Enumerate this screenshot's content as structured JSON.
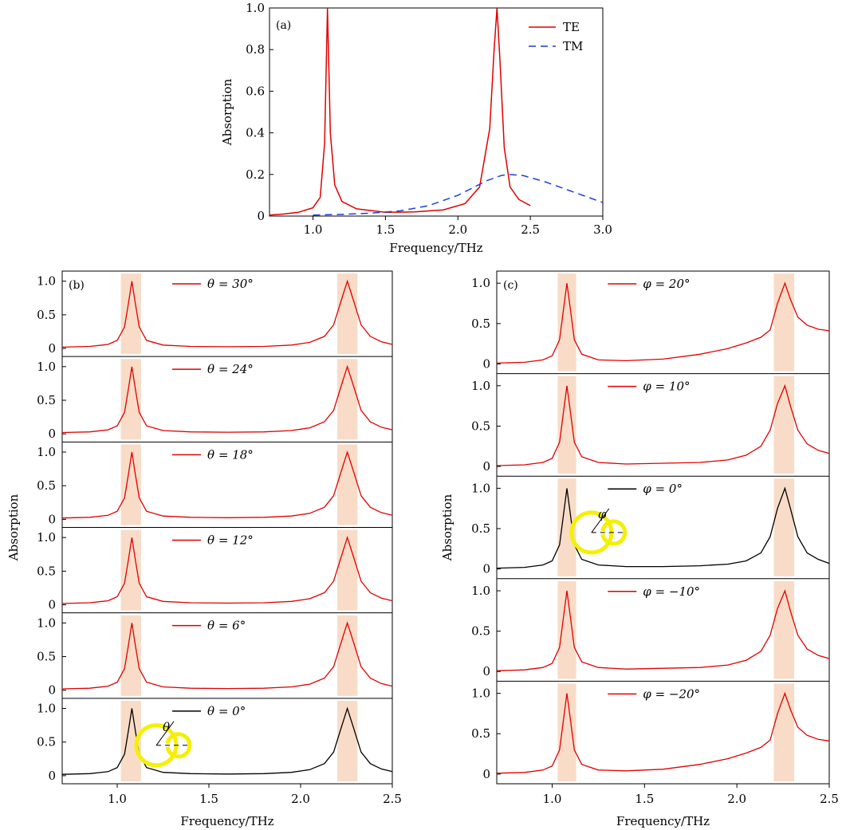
{
  "chart_data": [
    {
      "type": "line",
      "panel_label": "(a)",
      "xlabel": "Frequency/THz",
      "ylabel": "Absorption",
      "xlim": [
        0.7,
        3.0
      ],
      "ylim": [
        0,
        1.0
      ],
      "xticks": [
        1.0,
        1.5,
        2.0,
        2.5,
        3.0
      ],
      "xtick_labels": [
        "1.0",
        "1.5",
        "2.0",
        "2.5",
        "3.0"
      ],
      "yticks": [
        0,
        0.2,
        0.4,
        0.6,
        0.8,
        1.0
      ],
      "ytick_labels": [
        "0",
        "0.2",
        "0.4",
        "0.6",
        "0.8",
        "1.0"
      ],
      "legend_position": "top-right",
      "series": [
        {
          "name": "TE",
          "color": "#e00000",
          "style": "solid",
          "x": [
            0.7,
            0.8,
            0.9,
            1.0,
            1.05,
            1.08,
            1.1,
            1.12,
            1.15,
            1.2,
            1.3,
            1.5,
            1.7,
            1.9,
            2.05,
            2.15,
            2.22,
            2.25,
            2.27,
            2.29,
            2.32,
            2.36,
            2.42,
            2.5
          ],
          "y": [
            0.005,
            0.01,
            0.018,
            0.04,
            0.09,
            0.35,
            1.0,
            0.4,
            0.15,
            0.07,
            0.035,
            0.018,
            0.02,
            0.03,
            0.06,
            0.14,
            0.42,
            0.8,
            1.0,
            0.75,
            0.33,
            0.14,
            0.08,
            0.05
          ]
        },
        {
          "name": "TM",
          "color": "#1f3fd8",
          "style": "dashed",
          "x": [
            1.0,
            1.2,
            1.4,
            1.6,
            1.8,
            2.0,
            2.1,
            2.2,
            2.3,
            2.35,
            2.45,
            2.6,
            2.8,
            3.0
          ],
          "y": [
            0.005,
            0.008,
            0.014,
            0.025,
            0.05,
            0.1,
            0.135,
            0.17,
            0.195,
            0.2,
            0.195,
            0.165,
            0.115,
            0.065
          ]
        }
      ]
    },
    {
      "type": "line",
      "panel_label": "(b)",
      "xlabel": "Frequency/THz",
      "ylabel": "Absorption",
      "xlim": [
        0.7,
        2.5
      ],
      "ylim": [
        0,
        1.0
      ],
      "xticks": [
        1.0,
        1.5,
        2.0,
        2.5
      ],
      "xtick_labels": [
        "1.0",
        "1.5",
        "2.0",
        "2.5"
      ],
      "yticks": [
        0,
        0.5,
        1.0
      ],
      "ytick_labels": [
        "0",
        "0.5",
        "1.0"
      ],
      "highlight_bands": [
        [
          1.02,
          1.13
        ],
        [
          2.2,
          2.31
        ]
      ],
      "highlight_color": "#f8dcc8",
      "peaks": [
        1.08,
        2.255
      ],
      "legend_position": "top-center",
      "subplots": [
        {
          "legend": "θ = 30°",
          "color": "#e00000"
        },
        {
          "legend": "θ = 24°",
          "color": "#e00000"
        },
        {
          "legend": "θ = 18°",
          "color": "#e00000"
        },
        {
          "legend": "θ = 12°",
          "color": "#e00000"
        },
        {
          "legend": "θ = 6°",
          "color": "#e00000"
        },
        {
          "legend": "θ = 0°",
          "color": "#000000",
          "inset_angle_label": "θ"
        }
      ],
      "curve": {
        "x": [
          0.7,
          0.85,
          0.95,
          1.0,
          1.04,
          1.06,
          1.08,
          1.1,
          1.12,
          1.16,
          1.25,
          1.4,
          1.6,
          1.8,
          1.95,
          2.05,
          2.13,
          2.18,
          2.22,
          2.255,
          2.29,
          2.33,
          2.38,
          2.44,
          2.5
        ],
        "y": [
          0.02,
          0.03,
          0.06,
          0.12,
          0.32,
          0.65,
          1.0,
          0.65,
          0.32,
          0.12,
          0.05,
          0.03,
          0.025,
          0.03,
          0.05,
          0.09,
          0.18,
          0.35,
          0.7,
          1.0,
          0.7,
          0.35,
          0.18,
          0.1,
          0.06
        ]
      }
    },
    {
      "type": "line",
      "panel_label": "(c)",
      "xlabel": "Frequency/THz",
      "ylabel": "Absorption",
      "xlim": [
        0.7,
        2.5
      ],
      "ylim": [
        0,
        1.0
      ],
      "xticks": [
        1.0,
        1.5,
        2.0,
        2.5
      ],
      "xtick_labels": [
        "1.0",
        "1.5",
        "2.0",
        "2.5"
      ],
      "yticks": [
        0,
        0.5,
        1.0
      ],
      "ytick_labels": [
        "0",
        "0.5",
        "1.0"
      ],
      "highlight_bands": [
        [
          1.03,
          1.13
        ],
        [
          2.2,
          2.31
        ]
      ],
      "highlight_color": "#f8dcc8",
      "peaks": [
        1.08,
        2.26
      ],
      "legend_position": "top-center",
      "subplots": [
        {
          "legend": "φ = 20°",
          "color": "#e00000",
          "curve": "wide"
        },
        {
          "legend": "φ = 10°",
          "color": "#e00000",
          "curve": "mid"
        },
        {
          "legend": "φ = 0°",
          "color": "#000000",
          "curve": "narrow",
          "inset_angle_label": "φ"
        },
        {
          "legend": "φ = −10°",
          "color": "#e00000",
          "curve": "mid"
        },
        {
          "legend": "φ = −20°",
          "color": "#e00000",
          "curve": "wide"
        }
      ],
      "curves": {
        "narrow": {
          "x": [
            0.7,
            0.85,
            0.95,
            1.0,
            1.04,
            1.06,
            1.08,
            1.1,
            1.12,
            1.16,
            1.25,
            1.4,
            1.6,
            1.8,
            1.95,
            2.05,
            2.13,
            2.18,
            2.22,
            2.26,
            2.29,
            2.33,
            2.38,
            2.44,
            2.5
          ],
          "y": [
            0.01,
            0.02,
            0.05,
            0.1,
            0.3,
            0.65,
            1.0,
            0.65,
            0.3,
            0.12,
            0.05,
            0.03,
            0.03,
            0.04,
            0.06,
            0.1,
            0.2,
            0.4,
            0.75,
            1.0,
            0.75,
            0.4,
            0.2,
            0.12,
            0.07
          ]
        },
        "mid": {
          "x": [
            0.7,
            0.85,
            0.95,
            1.0,
            1.04,
            1.06,
            1.08,
            1.1,
            1.12,
            1.16,
            1.25,
            1.4,
            1.6,
            1.8,
            1.95,
            2.05,
            2.13,
            2.18,
            2.22,
            2.26,
            2.29,
            2.33,
            2.38,
            2.44,
            2.5
          ],
          "y": [
            0.01,
            0.02,
            0.05,
            0.1,
            0.3,
            0.65,
            1.0,
            0.65,
            0.3,
            0.12,
            0.05,
            0.03,
            0.04,
            0.05,
            0.08,
            0.14,
            0.25,
            0.45,
            0.78,
            1.0,
            0.75,
            0.45,
            0.28,
            0.2,
            0.16
          ]
        },
        "wide": {
          "x": [
            0.7,
            0.85,
            0.95,
            1.0,
            1.04,
            1.06,
            1.08,
            1.1,
            1.12,
            1.16,
            1.25,
            1.4,
            1.6,
            1.8,
            1.95,
            2.05,
            2.13,
            2.18,
            2.22,
            2.26,
            2.29,
            2.33,
            2.38,
            2.44,
            2.5
          ],
          "y": [
            0.01,
            0.02,
            0.05,
            0.1,
            0.3,
            0.65,
            1.0,
            0.65,
            0.3,
            0.12,
            0.05,
            0.04,
            0.06,
            0.12,
            0.19,
            0.26,
            0.33,
            0.42,
            0.75,
            1.0,
            0.8,
            0.58,
            0.48,
            0.43,
            0.41
          ]
        }
      }
    }
  ]
}
